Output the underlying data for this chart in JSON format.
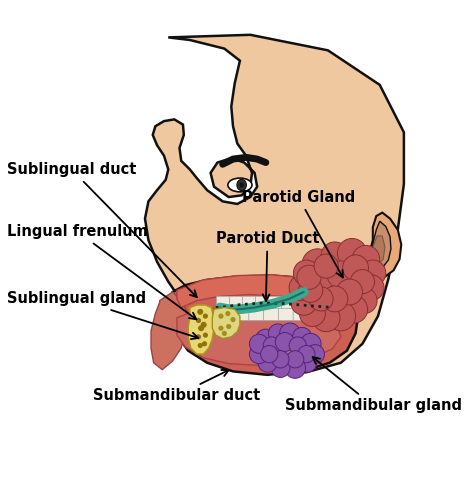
{
  "background_color": "#ffffff",
  "skin_color": "#f0c8a0",
  "skin_dark": "#e8a878",
  "skin_shadow": "#c8906a",
  "mouth_interior": "#cc6055",
  "palate_color": "#c05850",
  "tongue_color": "#c86860",
  "parotid_color": "#c05858",
  "parotid_duct_color": "#3aaa90",
  "sublingual_color": "#e8d870",
  "submandibular_color": "#8855aa",
  "teeth_color": "#f0ede0",
  "gum_color": "#c06060",
  "outline_color": "#111111",
  "label_color": "#000000",
  "label_fontsize": 10.5,
  "labels": {
    "sublingual_duct": "Sublingual duct",
    "parotid_gland": "Parotid Gland",
    "parotid_duct": "Parotid Duct",
    "lingual_frenulum": "Lingual frenulum",
    "sublingual_gland": "Sublingual gland",
    "submandibular_duct": "Submandibular duct",
    "submandibular_gland": "Submandibular gland"
  }
}
